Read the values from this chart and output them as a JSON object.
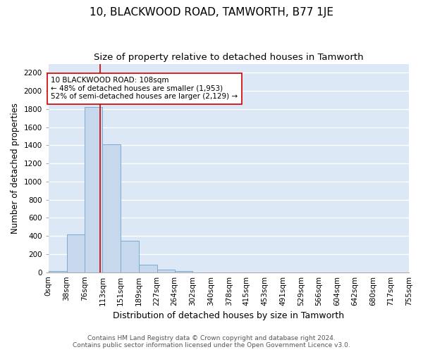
{
  "title": "10, BLACKWOOD ROAD, TAMWORTH, B77 1JE",
  "subtitle": "Size of property relative to detached houses in Tamworth",
  "xlabel": "Distribution of detached houses by size in Tamworth",
  "ylabel": "Number of detached properties",
  "bar_color": "#c8d8ec",
  "bar_edge_color": "#7aaad4",
  "bg_color": "#dce8f5",
  "grid_color": "#ffffff",
  "bin_labels": [
    "0sqm",
    "38sqm",
    "76sqm",
    "113sqm",
    "151sqm",
    "189sqm",
    "227sqm",
    "264sqm",
    "302sqm",
    "340sqm",
    "378sqm",
    "415sqm",
    "453sqm",
    "491sqm",
    "529sqm",
    "566sqm",
    "604sqm",
    "642sqm",
    "680sqm",
    "717sqm",
    "755sqm"
  ],
  "bar_heights": [
    15,
    420,
    1820,
    1410,
    350,
    80,
    30,
    15,
    0,
    0,
    0,
    0,
    0,
    0,
    0,
    0,
    0,
    0,
    0,
    0
  ],
  "bin_edges": [
    0,
    38,
    76,
    113,
    151,
    189,
    227,
    264,
    302,
    340,
    378,
    415,
    453,
    491,
    529,
    566,
    604,
    642,
    680,
    717,
    755
  ],
  "property_size": 108,
  "red_line_color": "#cc0000",
  "annotation_line1": "10 BLACKWOOD ROAD: 108sqm",
  "annotation_line2": "← 48% of detached houses are smaller (1,953)",
  "annotation_line3": "52% of semi-detached houses are larger (2,129) →",
  "annotation_box_color": "#ffffff",
  "annotation_box_edge": "#cc0000",
  "ylim": [
    0,
    2300
  ],
  "yticks": [
    0,
    200,
    400,
    600,
    800,
    1000,
    1200,
    1400,
    1600,
    1800,
    2000,
    2200
  ],
  "footnote1": "Contains HM Land Registry data © Crown copyright and database right 2024.",
  "footnote2": "Contains public sector information licensed under the Open Government Licence v3.0.",
  "title_fontsize": 11,
  "subtitle_fontsize": 9.5,
  "xlabel_fontsize": 9,
  "ylabel_fontsize": 8.5,
  "tick_fontsize": 7.5,
  "annotation_fontsize": 7.5,
  "footnote_fontsize": 6.5
}
